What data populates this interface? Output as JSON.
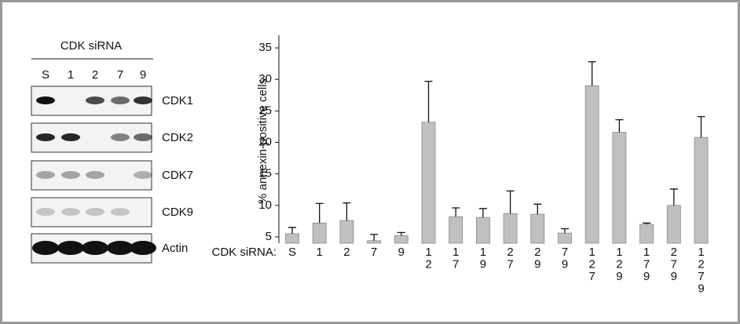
{
  "blot": {
    "title": "CDK siRNA",
    "lanes": [
      "S",
      "1",
      "2",
      "7",
      "9"
    ],
    "rows": [
      "CDK1",
      "CDK2",
      "CDK7",
      "CDK9",
      "Actin"
    ]
  },
  "chart_data": {
    "type": "bar",
    "ylabel": "% annexin-positive cells",
    "xlabel": "CDK siRNA:",
    "categories": [
      "S",
      "1",
      "2",
      "7",
      "9",
      "1\n2",
      "1\n7",
      "1\n9",
      "2\n7",
      "2\n9",
      "7\n9",
      "1\n2\n7",
      "1\n2\n9",
      "1\n7\n9",
      "2\n7\n9",
      "1\n2\n7\n9"
    ],
    "values": [
      5.5,
      7.2,
      7.6,
      4.4,
      5.2,
      23.2,
      8.2,
      8.1,
      8.7,
      8.6,
      5.6,
      29.0,
      21.6,
      7.0,
      10.0,
      20.8
    ],
    "errors": [
      1.0,
      3.1,
      2.8,
      1.0,
      0.5,
      6.5,
      1.4,
      1.4,
      3.6,
      1.6,
      0.7,
      3.8,
      2.0,
      0.2,
      2.6,
      3.3
    ],
    "color": "#c0c0c0",
    "ylim": [
      4,
      37
    ],
    "yticks": [
      5,
      10,
      15,
      20,
      25,
      30,
      35
    ]
  }
}
